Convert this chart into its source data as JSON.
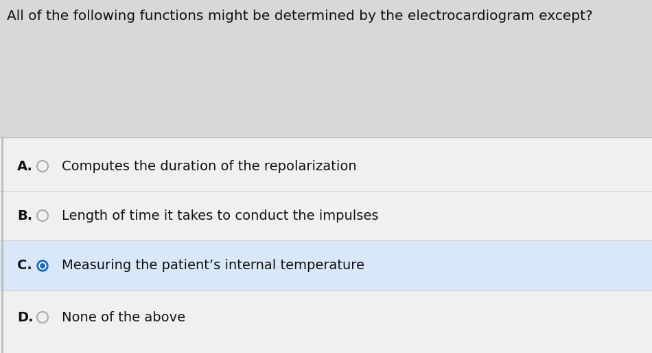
{
  "question": "All of the following functions might be determined by the electrocardiogram except?",
  "options": [
    {
      "label": "A.",
      "text": "Computes the duration of the repolarization",
      "selected": false
    },
    {
      "label": "B.",
      "text": "Length of time it takes to conduct the impulses",
      "selected": false
    },
    {
      "label": "C.",
      "text": "Measuring the patient’s internal temperature",
      "selected": true
    },
    {
      "label": "D.",
      "text": "None of the above",
      "selected": false
    }
  ],
  "top_bg_color": "#d8d8d8",
  "bottom_bg_color": "#f0f0f0",
  "selected_bg_color": "#d8e8f8",
  "question_color": "#111111",
  "option_label_color": "#111111",
  "option_text_color": "#111111",
  "radio_empty_edgecolor": "#aaaaaa",
  "radio_selected_color": "#1a6bbf",
  "divider_color": "#c0c0c0",
  "left_border_color": "#bbbbbb",
  "question_fontsize": 14.5,
  "option_fontsize": 14,
  "label_fontsize": 14
}
